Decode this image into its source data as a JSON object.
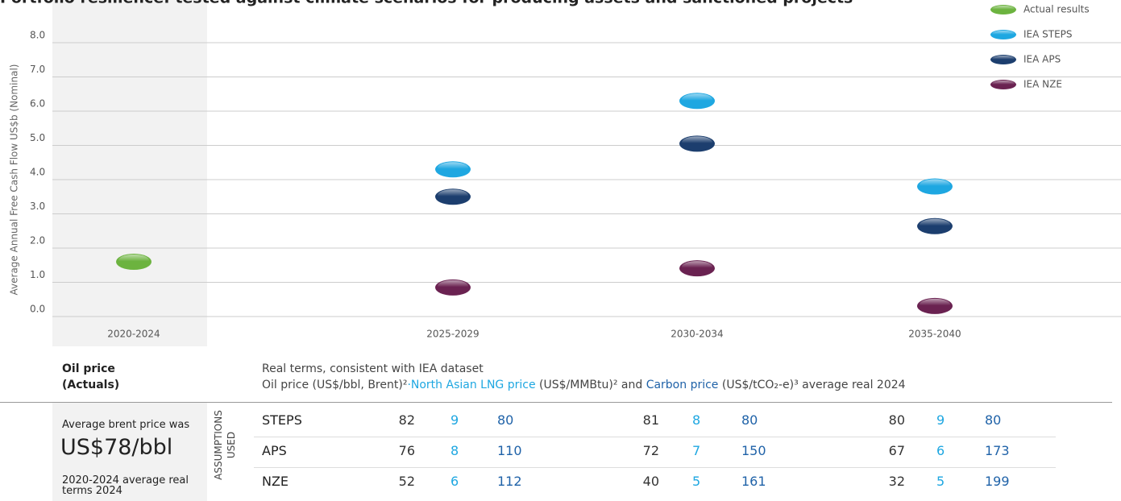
{
  "chart_data": {
    "type": "scatter",
    "title": "Portfolio resilience: tested against climate scenarios for producing assets and sanctioned projects",
    "y_label": "Average Annual Free Cash Flow US$b (Nominal)",
    "categories": [
      "2020-2024",
      "2025-2029",
      "2030-2034",
      "2035-2040"
    ],
    "series": [
      {
        "name": "Actual results",
        "color": "#6cb33f",
        "values": [
          1.6,
          null,
          null,
          null
        ]
      },
      {
        "name": "IEA STEPS",
        "color": "#1ea7e1",
        "values": [
          null,
          4.3,
          6.3,
          3.8
        ]
      },
      {
        "name": "IEA APS",
        "color": "#1c3e6e",
        "values": [
          null,
          3.5,
          5.05,
          2.64
        ]
      },
      {
        "name": "IEA NZE",
        "color": "#6a2251",
        "values": [
          null,
          0.85,
          1.41,
          0.31
        ]
      }
    ],
    "ylim": [
      0,
      8
    ],
    "yticks": [
      {
        "value": 0,
        "label": "0.0"
      },
      {
        "value": 1,
        "label": "1.0"
      },
      {
        "value": 2,
        "label": "2.0"
      },
      {
        "value": 3,
        "label": "3.0"
      },
      {
        "value": 4,
        "label": "4.0"
      },
      {
        "value": 5,
        "label": "5.0"
      },
      {
        "value": 6,
        "label": "6.0"
      },
      {
        "value": 7,
        "label": "7.0"
      },
      {
        "value": 8,
        "label": "8.0"
      }
    ],
    "grid": true,
    "legend": "top-right"
  },
  "table": {
    "header": [
      "Oil price",
      "(Actuals)"
    ],
    "note_title": "Real terms, consistent with IEA dataset",
    "note_parts": [
      "Oil price (US$/bbl, Brent)²",
      "·",
      "North Asian LNG price",
      " (US$/MMBtu)² and ",
      "Carbon price",
      " (US$/tCO₂-e)³ average real 2024"
    ],
    "actuals": [
      "Average brent price was",
      "US$78/bbl",
      "2020-2024 average real terms 2024"
    ],
    "side_label": [
      "ASSUMPTIONS",
      "USED"
    ],
    "rows": [
      {
        "label": "STEPS",
        "values": [
          [
            82,
            9,
            80
          ],
          [
            81,
            8,
            80
          ],
          [
            80,
            9,
            80
          ]
        ]
      },
      {
        "label": "APS",
        "values": [
          [
            76,
            8,
            110
          ],
          [
            72,
            7,
            150
          ],
          [
            67,
            6,
            173
          ]
        ]
      },
      {
        "label": "NZE",
        "values": [
          [
            52,
            6,
            112
          ],
          [
            40,
            5,
            161
          ],
          [
            32,
            5,
            199
          ]
        ]
      }
    ]
  }
}
